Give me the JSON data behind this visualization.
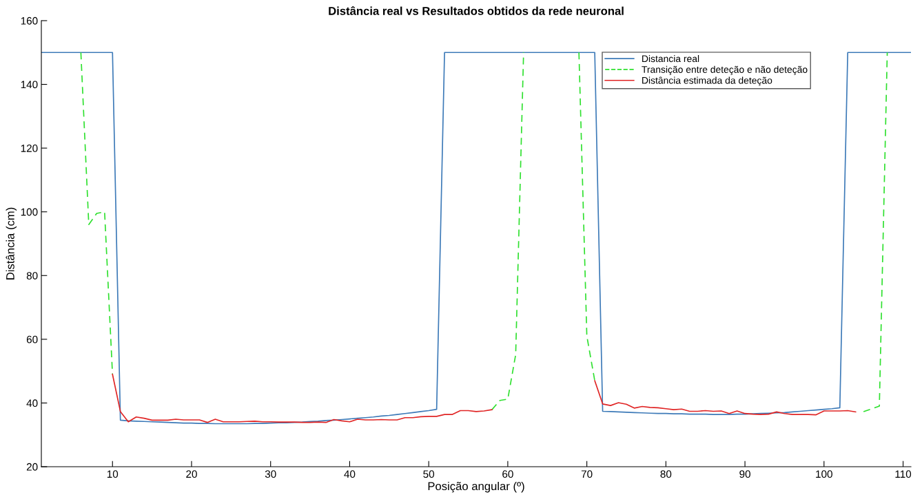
{
  "chart_data": {
    "type": "line",
    "title": "Distância real vs Resultados obtidos da rede neuronal",
    "xlabel": "Posição angular (º)",
    "ylabel": "Distância (cm)",
    "xlim": [
      1,
      111
    ],
    "xticks": [
      10,
      20,
      30,
      40,
      50,
      60,
      70,
      80,
      90,
      100,
      110
    ],
    "ylim": [
      20,
      160
    ],
    "yticks": [
      20,
      40,
      60,
      80,
      100,
      120,
      140,
      160
    ],
    "grid": false,
    "legend": "top right",
    "marker": "none",
    "series": [
      {
        "name": "Distancia real",
        "color": "#3d7ab8",
        "line_style": "solid",
        "x": [
          1,
          10,
          11,
          12,
          13,
          14,
          15,
          16,
          17,
          18,
          19,
          20,
          21,
          22,
          23,
          24,
          25,
          26,
          27,
          28,
          29,
          30,
          31,
          32,
          33,
          34,
          35,
          36,
          37,
          38,
          39,
          40,
          41,
          42,
          43,
          44,
          45,
          46,
          47,
          48,
          49,
          50,
          51,
          52,
          71,
          72,
          73,
          74,
          75,
          76,
          77,
          78,
          79,
          80,
          81,
          82,
          83,
          84,
          85,
          86,
          87,
          88,
          89,
          90,
          91,
          92,
          93,
          94,
          95,
          96,
          97,
          98,
          99,
          100,
          101,
          102,
          103,
          111
        ],
        "values": [
          150,
          150,
          34.6,
          34.4,
          34.3,
          34.2,
          34.1,
          34.0,
          33.9,
          33.8,
          33.7,
          33.7,
          33.6,
          33.6,
          33.5,
          33.5,
          33.5,
          33.5,
          33.5,
          33.6,
          33.6,
          33.7,
          33.8,
          33.8,
          33.9,
          34.0,
          34.2,
          34.3,
          34.5,
          34.6,
          34.8,
          35.0,
          35.2,
          35.4,
          35.6,
          35.9,
          36.1,
          36.4,
          36.7,
          37.0,
          37.3,
          37.6,
          38.0,
          150,
          150,
          37.4,
          37.3,
          37.2,
          37.1,
          37.0,
          36.9,
          36.8,
          36.7,
          36.7,
          36.6,
          36.6,
          36.5,
          36.5,
          36.5,
          36.4,
          36.4,
          36.4,
          36.5,
          36.5,
          36.6,
          36.7,
          36.8,
          36.9,
          37.0,
          37.2,
          37.4,
          37.6,
          37.8,
          38.0,
          38.2,
          38.5,
          150,
          150
        ]
      },
      {
        "name": "Transição entre deteção e não deteção",
        "color": "#2ee02e",
        "line_style": "dashed",
        "x": [
          6,
          7,
          8,
          9,
          10,
          11,
          58,
          59,
          60,
          61,
          62,
          65,
          69,
          70,
          71,
          72,
          105,
          107,
          108
        ],
        "values": [
          150,
          96,
          99.5,
          100,
          49,
          null,
          37.9,
          40.8,
          41.2,
          55.2,
          150,
          null,
          150,
          61,
          47,
          null,
          37.3,
          39.0,
          150
        ]
      },
      {
        "name": "Distância estimada da deteção",
        "color": "#e02424",
        "line_style": "solid",
        "x": [
          10,
          11,
          12,
          13,
          14,
          15,
          16,
          17,
          18,
          19,
          20,
          21,
          22,
          23,
          24,
          25,
          26,
          27,
          28,
          29,
          30,
          31,
          32,
          33,
          34,
          35,
          36,
          37,
          38,
          39,
          40,
          41,
          42,
          43,
          44,
          45,
          46,
          47,
          48,
          49,
          50,
          51,
          52,
          53,
          54,
          55,
          56,
          57,
          58,
          65,
          71,
          72,
          73,
          74,
          75,
          76,
          77,
          78,
          79,
          80,
          81,
          82,
          83,
          84,
          85,
          86,
          87,
          88,
          89,
          90,
          91,
          92,
          93,
          94,
          95,
          96,
          97,
          98,
          99,
          100,
          101,
          102,
          103,
          104
        ],
        "values": [
          49,
          37.3,
          34.1,
          35.6,
          35.2,
          34.6,
          34.6,
          34.6,
          34.9,
          34.7,
          34.7,
          34.7,
          33.9,
          34.9,
          34.1,
          34.1,
          34.1,
          34.2,
          34.3,
          34.1,
          34.1,
          34.0,
          34.0,
          34.0,
          33.9,
          33.9,
          34.0,
          33.9,
          34.8,
          34.4,
          34.1,
          34.9,
          34.7,
          34.7,
          34.8,
          34.7,
          34.7,
          35.4,
          35.4,
          35.7,
          35.8,
          35.8,
          36.4,
          36.4,
          37.6,
          37.6,
          37.3,
          37.5,
          37.9,
          null,
          47,
          39.7,
          39.2,
          40.1,
          39.6,
          38.4,
          38.9,
          38.6,
          38.5,
          38.2,
          37.9,
          38.1,
          37.4,
          37.4,
          37.6,
          37.4,
          37.5,
          36.7,
          37.5,
          36.7,
          36.5,
          36.4,
          36.5,
          37.2,
          36.7,
          36.4,
          36.4,
          36.4,
          36.3,
          37.5,
          37.5,
          37.5,
          37.6,
          37.2
        ]
      }
    ]
  }
}
